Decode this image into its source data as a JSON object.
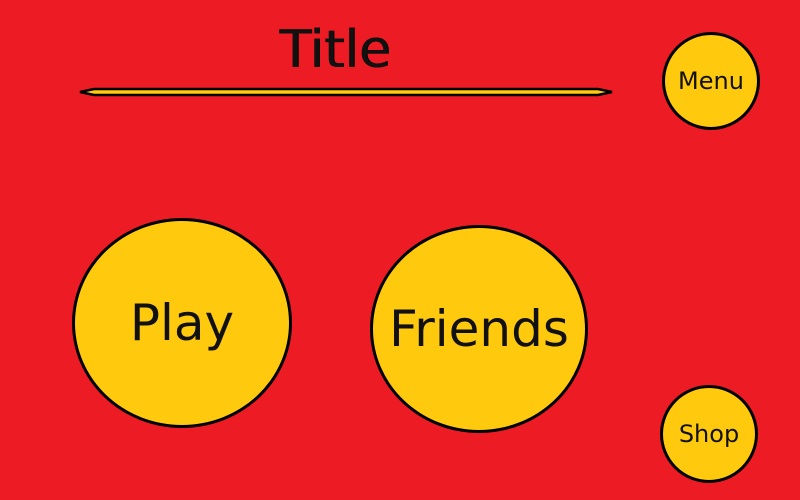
{
  "screen": {
    "title": "Title",
    "background_color": "#ED1C24",
    "button_color": "#FFC90E"
  },
  "buttons": {
    "menu": "Menu",
    "play": "Play",
    "friends": "Friends",
    "shop": "Shop"
  }
}
